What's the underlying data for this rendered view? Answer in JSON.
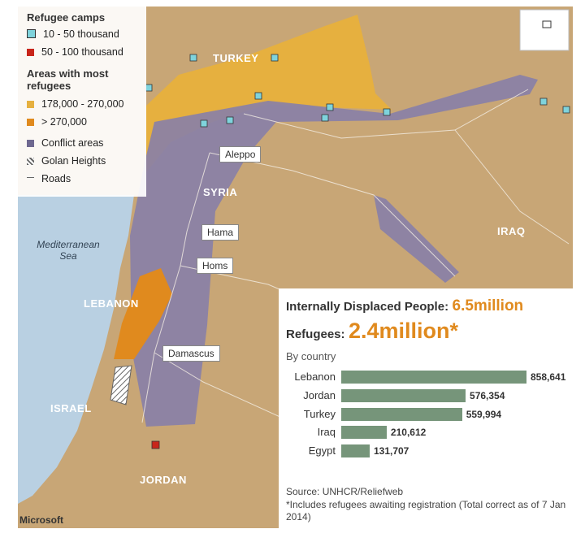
{
  "legend": {
    "camps_title": "Refugee camps",
    "camps": [
      "10 - 50 thousand",
      "50 - 100 thousand"
    ],
    "areas_title": "Areas with most refugees",
    "areas": [
      "178,000 - 270,000",
      "> 270,000"
    ],
    "other": [
      "Conflict areas",
      "Golan Heights",
      "Roads"
    ]
  },
  "map_labels": {
    "countries": [
      "TURKEY",
      "SYRIA",
      "IRAQ",
      "LEBANON",
      "ISRAEL",
      "JORDAN"
    ],
    "sea": "Mediterranean Sea",
    "cities": [
      "Aleppo",
      "Hama",
      "Homs",
      "Damascus"
    ],
    "credit": "Microsoft"
  },
  "stats": {
    "idp_label": "Internally Displaced People:",
    "idp_value": "6.5million",
    "refugees_label": "Refugees:",
    "refugees_value": "2.4million*"
  },
  "chart_data": {
    "type": "bar",
    "subtitle": "By country",
    "categories": [
      "Lebanon",
      "Jordan",
      "Turkey",
      "Iraq",
      "Egypt"
    ],
    "values": [
      858641,
      576354,
      559994,
      210612,
      131707
    ],
    "value_labels": [
      "858,641",
      "576,354",
      "559,994",
      "210,612",
      "131,707"
    ],
    "color": "#76957a"
  },
  "footer": {
    "source": "Source: UNHCR/Reliefweb",
    "note": "*Includes refugees awaiting registration  (Total correct as of 7 Jan 2014)"
  }
}
